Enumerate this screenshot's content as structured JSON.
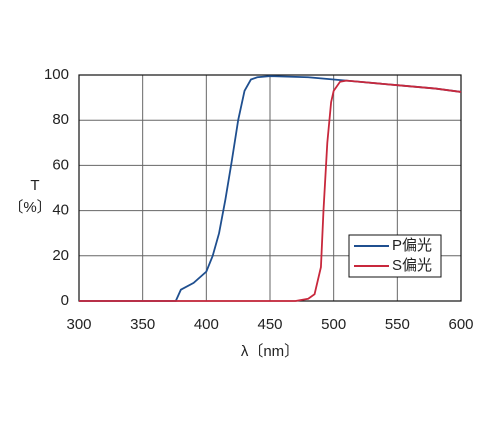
{
  "chart_data": {
    "type": "line",
    "y_label_top": "T",
    "y_label_bottom": "〔%〕",
    "x_label": "λ〔nm〕",
    "xlim": [
      300,
      600
    ],
    "xticks": [
      300,
      350,
      400,
      450,
      500,
      550,
      600
    ],
    "ylim": [
      0,
      100
    ],
    "yticks": [
      0,
      20,
      40,
      60,
      80,
      100
    ],
    "grid": true,
    "legend": "lower right",
    "series": [
      {
        "name": "P偏光",
        "color": "#1f4f8f",
        "x": [
          300,
          376,
          380,
          390,
          400,
          405,
          410,
          415,
          420,
          425,
          430,
          435,
          440,
          450,
          480,
          500,
          520,
          550,
          580,
          600
        ],
        "values": [
          0,
          0,
          5,
          8,
          13,
          20,
          30,
          45,
          62,
          80,
          93,
          98,
          99,
          99.5,
          99,
          98,
          97,
          95.5,
          94,
          92.5
        ]
      },
      {
        "name": "S偏光",
        "color": "#c8283c",
        "x": [
          300,
          470,
          480,
          485,
          490,
          492,
          495,
          498,
          500,
          505,
          510,
          520,
          550,
          580,
          600
        ],
        "values": [
          0,
          0,
          1,
          3,
          15,
          40,
          70,
          88,
          93,
          97,
          97.5,
          97,
          95.5,
          94,
          92.5
        ]
      }
    ]
  }
}
